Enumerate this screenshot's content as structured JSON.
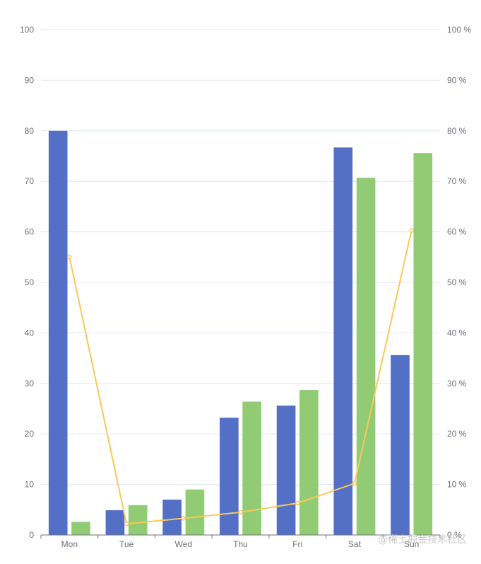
{
  "watermark": "@稀土掘金技术社区",
  "colors": {
    "series1": "#5470c6",
    "series2": "#91cc75",
    "series3": "#fac858",
    "grid": "#e0e6f1",
    "axis": "#6e7079"
  },
  "chart_data": {
    "type": "bar",
    "categories": [
      "Mon",
      "Tue",
      "Wed",
      "Thu",
      "Fri",
      "Sat",
      "Sun"
    ],
    "series": [
      {
        "type": "bar",
        "axis": "left",
        "values": [
          80,
          4.9,
          7.0,
          23.2,
          25.6,
          76.7,
          35.6
        ]
      },
      {
        "type": "bar",
        "axis": "left",
        "values": [
          2.6,
          5.9,
          9.0,
          26.4,
          28.7,
          70.7,
          75.6
        ]
      },
      {
        "type": "line",
        "axis": "right",
        "values": [
          55,
          2.2,
          3.3,
          4.5,
          6.3,
          10.2,
          60.3
        ]
      }
    ],
    "y_left": {
      "min": 0,
      "max": 100,
      "ticks": [
        "0",
        "10",
        "20",
        "30",
        "40",
        "50",
        "60",
        "70",
        "80",
        "90",
        "100"
      ]
    },
    "y_right": {
      "min": 0,
      "max": 100,
      "ticks": [
        "0 %",
        "10 %",
        "20 %",
        "30 %",
        "40 %",
        "50 %",
        "60 %",
        "70 %",
        "80 %",
        "90 %",
        "100 %"
      ]
    },
    "grid": true,
    "legend": "none"
  }
}
